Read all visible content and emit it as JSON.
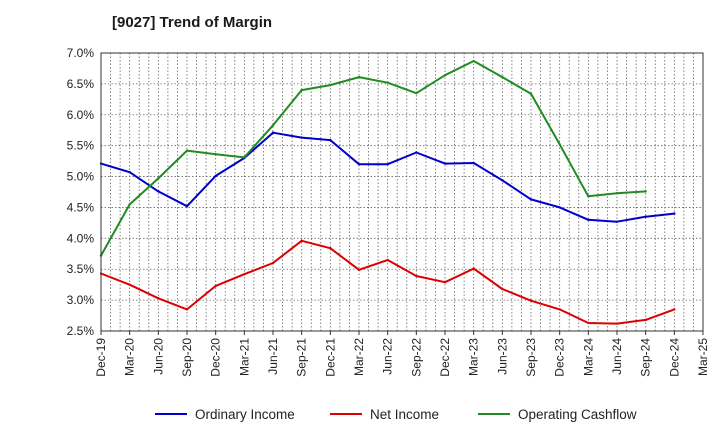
{
  "chart_data": {
    "type": "line",
    "title": "[9027]  Trend of Margin",
    "xlabel": "",
    "ylabel": "",
    "categories": [
      "Dec-19",
      "Mar-20",
      "Jun-20",
      "Sep-20",
      "Dec-20",
      "Mar-21",
      "Jun-21",
      "Sep-21",
      "Dec-21",
      "Mar-22",
      "Jun-22",
      "Sep-22",
      "Dec-22",
      "Mar-23",
      "Jun-23",
      "Sep-23",
      "Dec-23",
      "Mar-24",
      "Jun-24",
      "Sep-24",
      "Dec-24",
      "Mar-25"
    ],
    "ylim": [
      2.5,
      7.0
    ],
    "yticks": [
      "2.5%",
      "3.0%",
      "3.5%",
      "4.0%",
      "4.5%",
      "5.0%",
      "5.5%",
      "6.0%",
      "6.5%",
      "7.0%"
    ],
    "grid": true,
    "legend_position": "bottom",
    "series": [
      {
        "name": "Ordinary Income",
        "color": "#0000cc",
        "values": [
          5.21,
          5.07,
          4.76,
          4.52,
          5.01,
          5.3,
          5.71,
          5.63,
          5.59,
          5.2,
          5.2,
          5.39,
          5.21,
          5.22,
          4.94,
          4.63,
          4.5,
          4.3,
          4.27,
          4.35,
          4.4,
          null
        ]
      },
      {
        "name": "Net Income",
        "color": "#dd0000",
        "values": [
          3.43,
          3.25,
          3.03,
          2.85,
          3.23,
          3.42,
          3.6,
          3.96,
          3.84,
          3.49,
          3.65,
          3.39,
          3.29,
          3.51,
          3.18,
          2.99,
          2.85,
          2.63,
          2.62,
          2.68,
          2.85,
          null
        ]
      },
      {
        "name": "Operating Cashflow",
        "color": "#228b22",
        "values": [
          3.72,
          4.55,
          4.97,
          5.42,
          5.36,
          5.31,
          5.83,
          6.4,
          6.48,
          6.61,
          6.52,
          6.35,
          6.64,
          6.87,
          6.61,
          6.34,
          5.52,
          4.68,
          4.73,
          4.76,
          null,
          null
        ]
      }
    ]
  }
}
